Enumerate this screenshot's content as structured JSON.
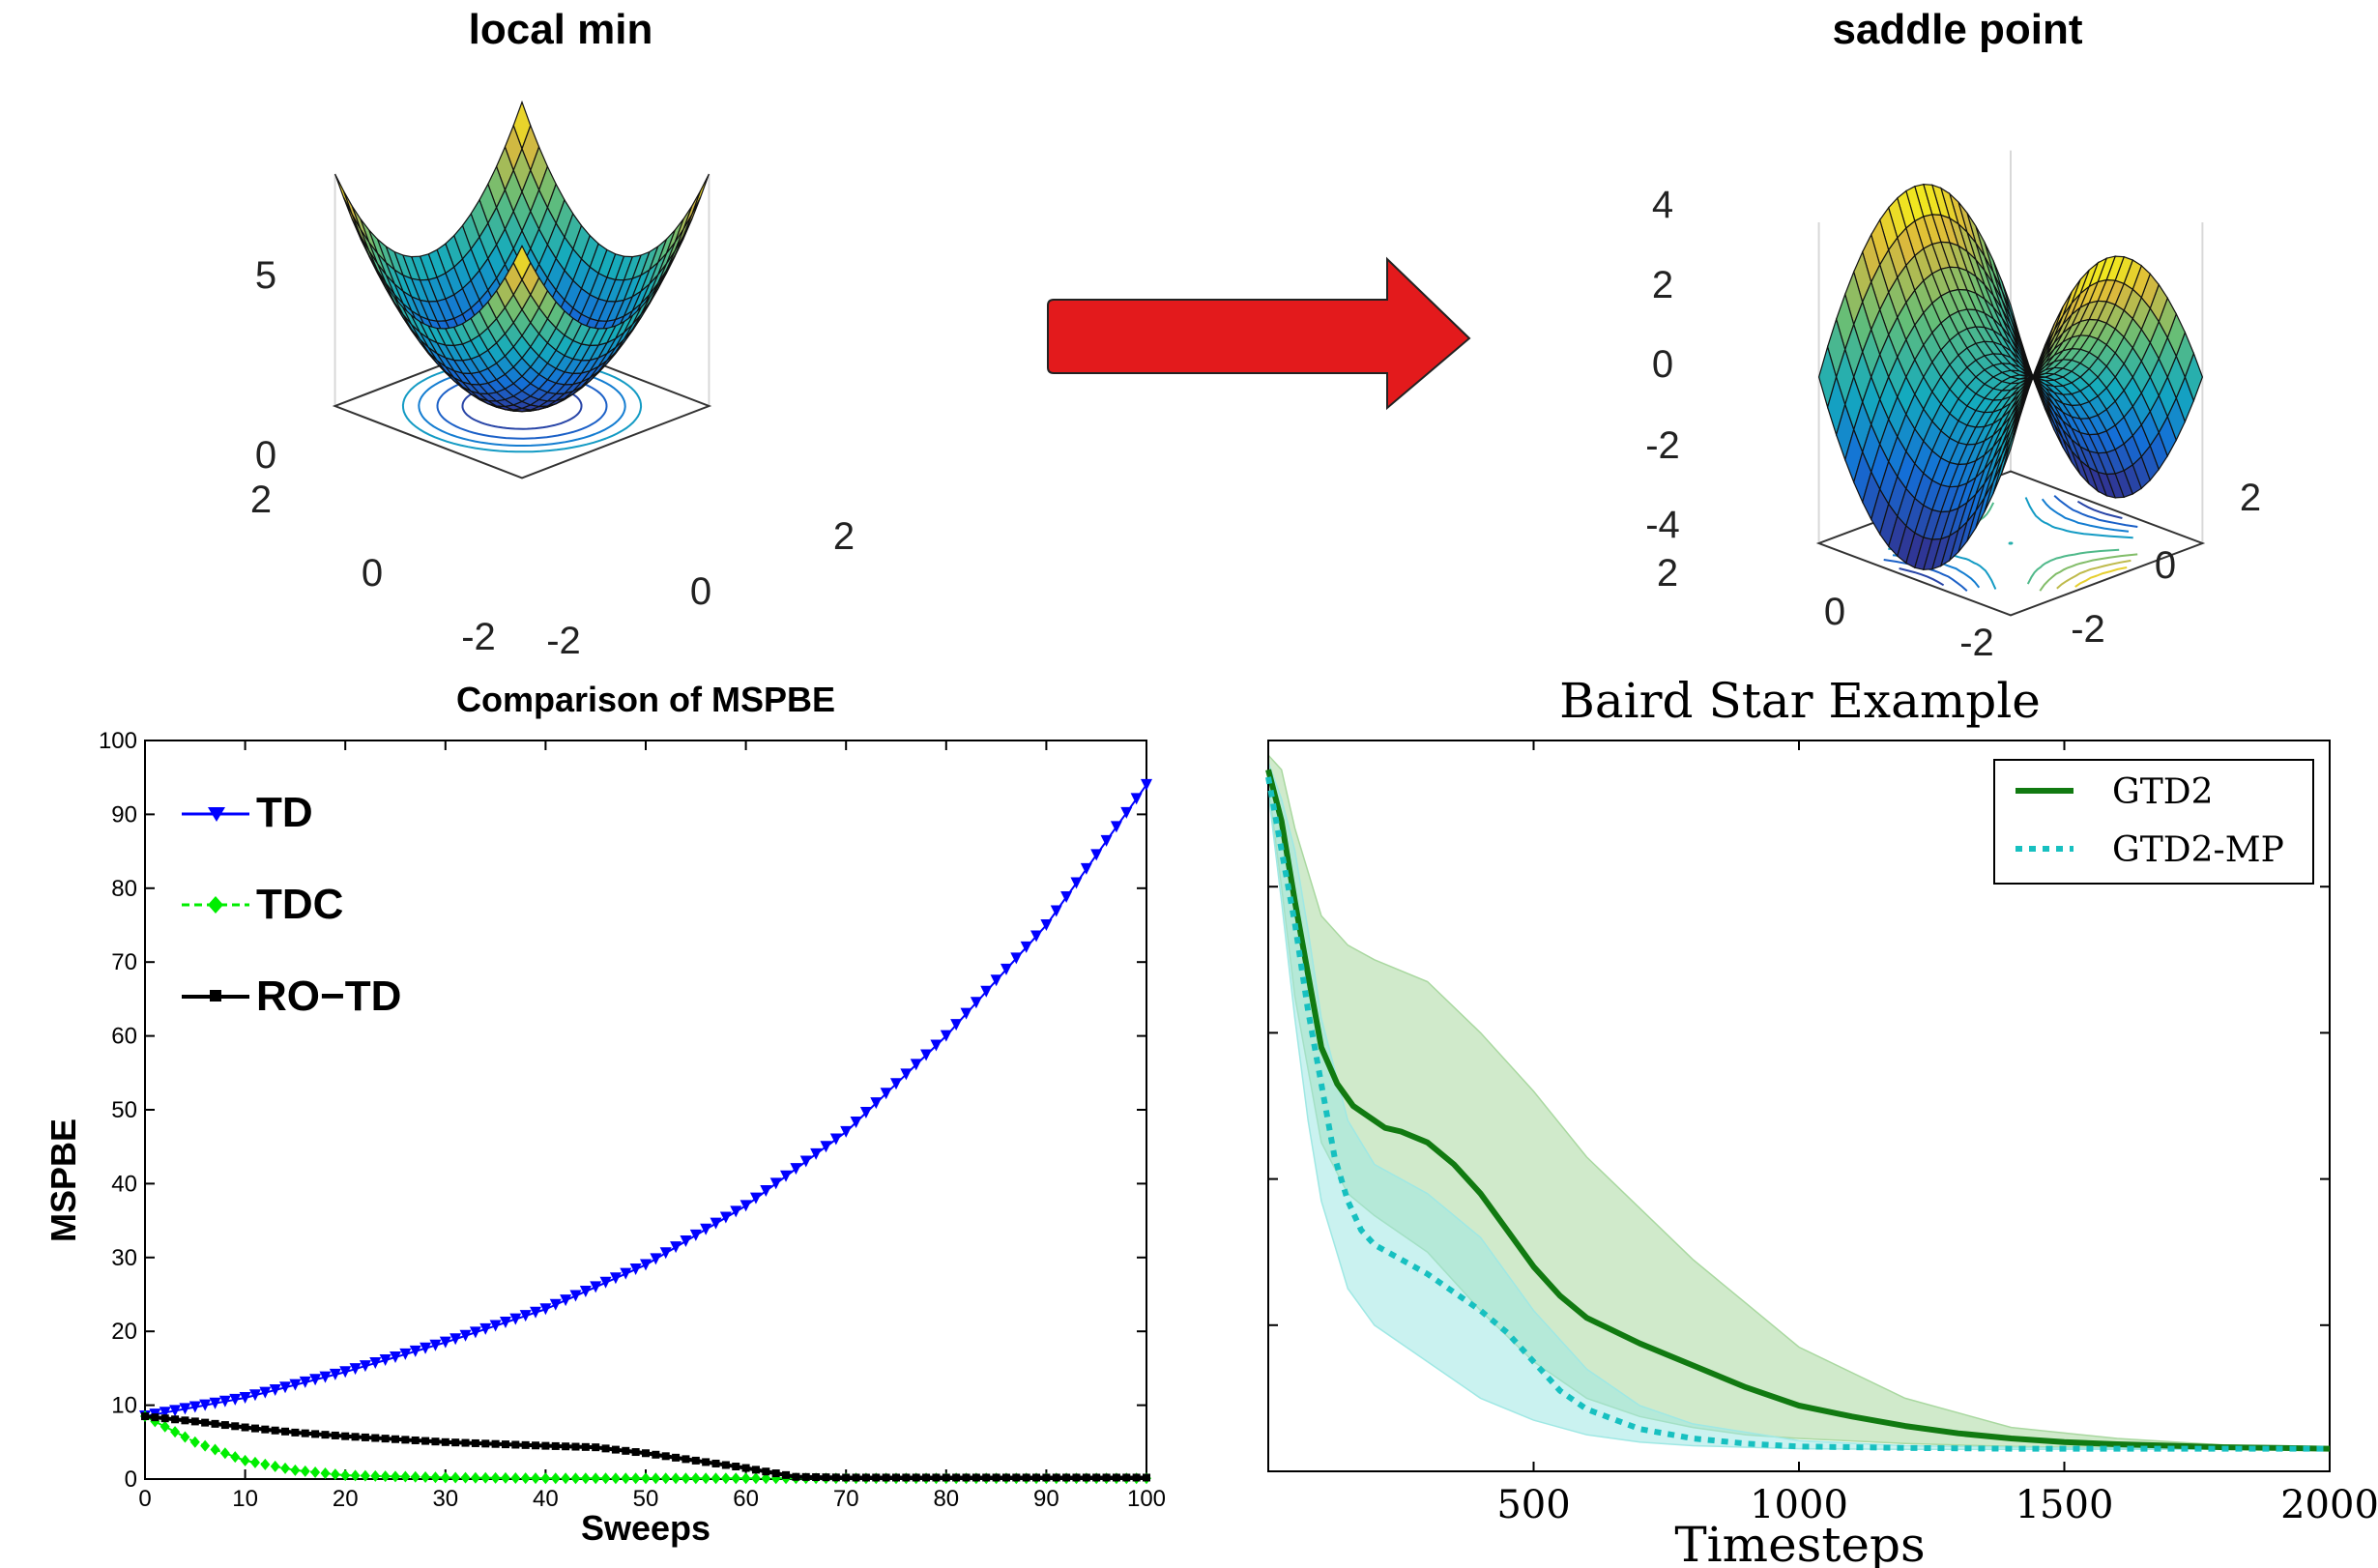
{
  "top_left": {
    "title": "local min",
    "z_ticks": [
      "5",
      "0"
    ],
    "left_ticks": [
      "2",
      "0",
      "-2"
    ],
    "right_ticks": [
      "-2",
      "0",
      "2"
    ]
  },
  "top_right": {
    "title": "saddle point",
    "z_ticks": [
      "4",
      "2",
      "0",
      "-2",
      "-4"
    ],
    "left_ticks": [
      "2",
      "0",
      "-2"
    ],
    "right_ticks": [
      "-2",
      "0",
      "2"
    ]
  },
  "arrow_color": "#e31a1c",
  "colors": {
    "td": "#0000ff",
    "tdc": "#00ee00",
    "rotd": "#000000",
    "gtd2": "#117a11",
    "gtd2mp": "#17c0c0",
    "gtd2_band": "#a9d8a0",
    "gtd2mp_band": "#9fe8e4"
  },
  "chart_data": [
    {
      "type": "line",
      "title": "Comparison of MSPBE",
      "xlabel": "Sweeps",
      "ylabel": "MSPBE",
      "xlim": [
        0,
        100
      ],
      "ylim": [
        0,
        100
      ],
      "xticks": [
        0,
        10,
        20,
        30,
        40,
        50,
        60,
        70,
        80,
        90,
        100
      ],
      "yticks": [
        0,
        10,
        20,
        30,
        40,
        50,
        60,
        70,
        80,
        90,
        100
      ],
      "legend_position": "top-left",
      "series": [
        {
          "name": "TD",
          "marker": "triangle-down",
          "x": [
            0,
            10,
            20,
            30,
            40,
            50,
            60,
            70,
            80,
            90,
            100
          ],
          "y": [
            8.5,
            11,
            14.5,
            18.5,
            23,
            29,
            37,
            47,
            60,
            75,
            94
          ]
        },
        {
          "name": "TDC",
          "marker": "diamond",
          "x": [
            0,
            5,
            10,
            15,
            20,
            30,
            40,
            50,
            60,
            70,
            80,
            90,
            100
          ],
          "y": [
            8.5,
            5,
            2.5,
            1.2,
            0.5,
            0.2,
            0.1,
            0.1,
            0.1,
            0.1,
            0.1,
            0.1,
            0.1
          ]
        },
        {
          "name": "RO−TD",
          "marker": "square",
          "x": [
            0,
            5,
            10,
            15,
            20,
            30,
            40,
            45,
            50,
            55,
            60,
            65,
            70,
            80,
            90,
            100
          ],
          "y": [
            8.5,
            7.8,
            7,
            6.3,
            5.8,
            5,
            4.5,
            4.3,
            3.5,
            2.5,
            1.5,
            0.3,
            0.2,
            0.2,
            0.2,
            0.2
          ]
        }
      ]
    },
    {
      "type": "line",
      "title": "Baird Star Example",
      "xlabel": "Timesteps",
      "ylabel": "",
      "xlim": [
        0,
        2000
      ],
      "ylim": [
        0,
        100
      ],
      "xticks": [
        500,
        1000,
        1500,
        2000
      ],
      "legend_position": "top-right",
      "series": [
        {
          "name": "GTD2",
          "style": "solid",
          "x": [
            0,
            25,
            50,
            80,
            100,
            130,
            160,
            200,
            220,
            250,
            300,
            350,
            400,
            450,
            500,
            550,
            600,
            700,
            800,
            900,
            1000,
            1100,
            1200,
            1300,
            1400,
            1500,
            1600,
            1700,
            1800,
            1900,
            2000
          ],
          "y": [
            96,
            89,
            78,
            66,
            58,
            53,
            50,
            48,
            47,
            46.5,
            45,
            42,
            38,
            33,
            28,
            24,
            21,
            17.5,
            14.5,
            11.5,
            9,
            7.5,
            6.2,
            5.2,
            4.5,
            4,
            3.7,
            3.5,
            3.3,
            3.2,
            3.1
          ]
        },
        {
          "name": "GTD2-MP",
          "style": "dotted",
          "x": [
            0,
            25,
            50,
            75,
            100,
            125,
            150,
            175,
            200,
            250,
            300,
            350,
            400,
            450,
            500,
            550,
            600,
            700,
            800,
            900,
            1000,
            1200,
            1400,
            1600,
            1800,
            2000
          ],
          "y": [
            95,
            85,
            75,
            63,
            53,
            43,
            37,
            33,
            31,
            29,
            27,
            24.5,
            22,
            19,
            15,
            11,
            8.5,
            5.8,
            4.5,
            3.8,
            3.4,
            3.2,
            3.1,
            3.1,
            3.1,
            3.1
          ]
        }
      ],
      "bands": [
        {
          "name": "GTD2",
          "x": [
            0,
            25,
            50,
            100,
            150,
            200,
            300,
            400,
            500,
            600,
            700,
            800,
            900,
            1000,
            1200,
            1400,
            1600,
            1800,
            2000
          ],
          "lower": [
            94,
            80,
            65,
            45,
            38,
            35,
            30,
            22,
            15,
            10,
            7.5,
            6,
            5,
            4.5,
            3.8,
            3.4,
            3.2,
            3.1,
            3
          ],
          "upper": [
            98,
            96,
            88,
            76,
            72,
            70,
            67,
            60,
            52,
            43,
            36,
            29,
            23,
            17,
            10,
            6,
            4.5,
            3.6,
            3.3
          ]
        },
        {
          "name": "GTD2-MP",
          "x": [
            0,
            25,
            50,
            75,
            100,
            150,
            200,
            300,
            400,
            500,
            600,
            700,
            800,
            1000,
            1200,
            1500,
            2000
          ],
          "lower": [
            93,
            78,
            62,
            48,
            37,
            25,
            20,
            15,
            10,
            7,
            5,
            4,
            3.5,
            3.1,
            3,
            3,
            3
          ],
          "upper": [
            97,
            92,
            85,
            74,
            62,
            48,
            42,
            38,
            32,
            22,
            14,
            9,
            6.5,
            4.2,
            3.5,
            3.2,
            3.1
          ]
        }
      ]
    }
  ]
}
